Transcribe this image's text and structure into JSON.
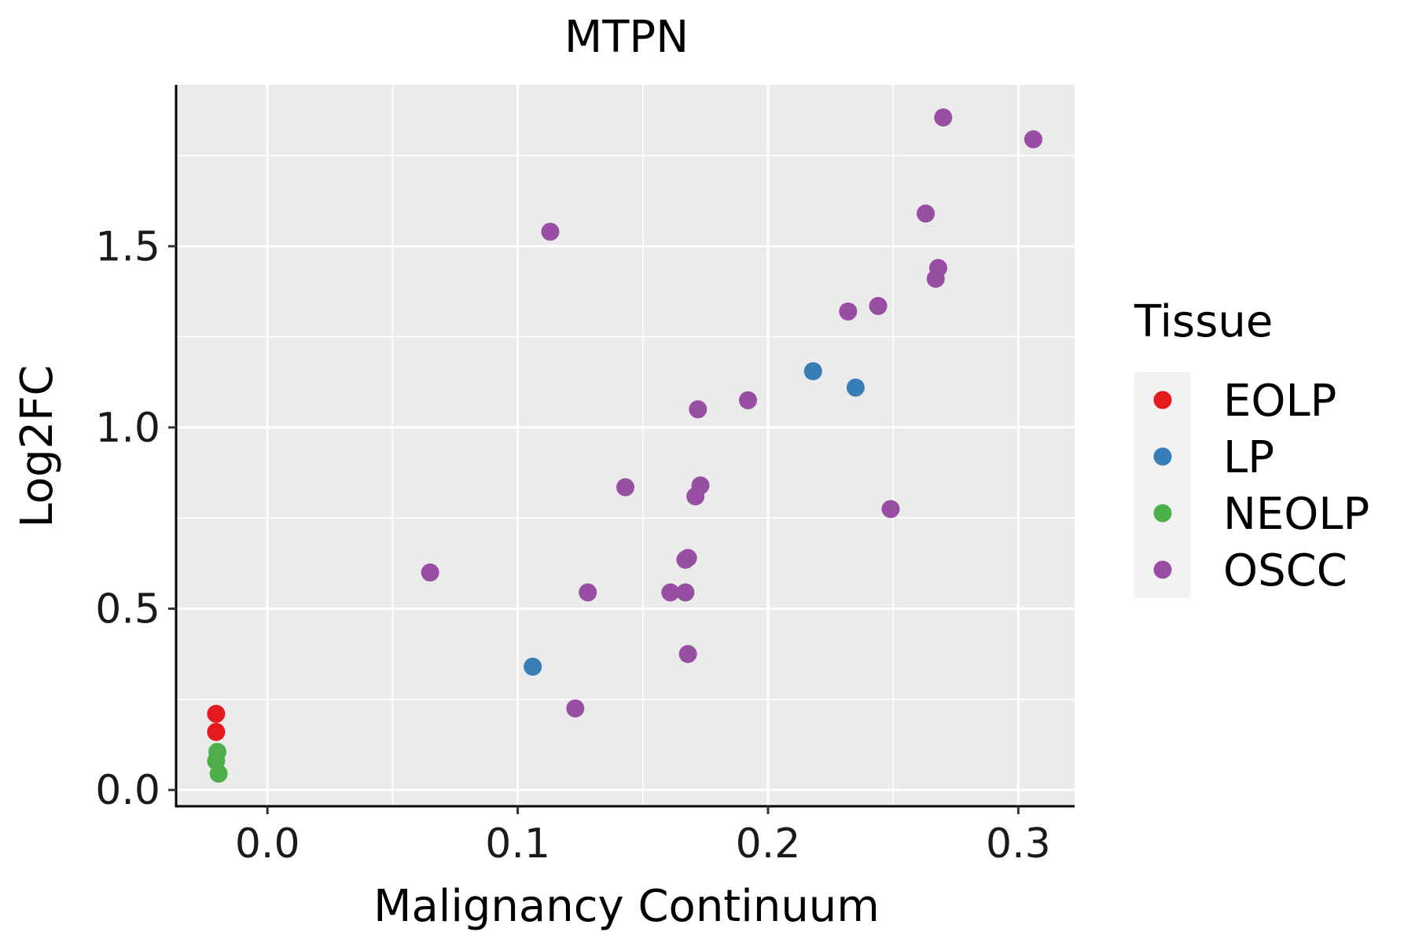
{
  "chart_data": {
    "type": "scatter",
    "title": "MTPN",
    "xlabel": "Malignancy Continuum",
    "ylabel": "Log2FC",
    "xlim": [
      -0.0365,
      0.3225
    ],
    "ylim": [
      -0.045,
      1.945
    ],
    "x_ticks": [
      {
        "value": 0.0,
        "label": "0.0"
      },
      {
        "value": 0.1,
        "label": "0.1"
      },
      {
        "value": 0.2,
        "label": "0.2"
      },
      {
        "value": 0.3,
        "label": "0.3"
      }
    ],
    "y_ticks": [
      {
        "value": 0.0,
        "label": "0.0"
      },
      {
        "value": 0.5,
        "label": "0.5"
      },
      {
        "value": 1.0,
        "label": "1.0"
      },
      {
        "value": 1.5,
        "label": "1.5"
      }
    ],
    "grid": true,
    "legend": {
      "title": "Tissue",
      "position": "right",
      "entries": [
        {
          "name": "EOLP",
          "color": "#E41A1C"
        },
        {
          "name": "LP",
          "color": "#377EB8"
        },
        {
          "name": "NEOLP",
          "color": "#4DAF4A"
        },
        {
          "name": "OSCC",
          "color": "#984EA3"
        }
      ]
    },
    "series": [
      {
        "name": "EOLP",
        "color": "#E41A1C",
        "points": [
          {
            "x": -0.0205,
            "y": 0.21
          },
          {
            "x": -0.0205,
            "y": 0.16
          }
        ]
      },
      {
        "name": "LP",
        "color": "#377EB8",
        "points": [
          {
            "x": 0.106,
            "y": 0.34
          },
          {
            "x": 0.218,
            "y": 1.155
          },
          {
            "x": 0.235,
            "y": 1.11
          }
        ]
      },
      {
        "name": "NEOLP",
        "color": "#4DAF4A",
        "points": [
          {
            "x": -0.02,
            "y": 0.105
          },
          {
            "x": -0.0205,
            "y": 0.08
          },
          {
            "x": -0.0195,
            "y": 0.045
          }
        ]
      },
      {
        "name": "OSCC",
        "color": "#984EA3",
        "points": [
          {
            "x": 0.065,
            "y": 0.6
          },
          {
            "x": 0.113,
            "y": 1.54
          },
          {
            "x": 0.123,
            "y": 0.225
          },
          {
            "x": 0.128,
            "y": 0.545
          },
          {
            "x": 0.143,
            "y": 0.835
          },
          {
            "x": 0.161,
            "y": 0.545
          },
          {
            "x": 0.167,
            "y": 0.545
          },
          {
            "x": 0.167,
            "y": 0.635
          },
          {
            "x": 0.168,
            "y": 0.64
          },
          {
            "x": 0.168,
            "y": 0.375
          },
          {
            "x": 0.171,
            "y": 0.81
          },
          {
            "x": 0.172,
            "y": 1.05
          },
          {
            "x": 0.173,
            "y": 0.84
          },
          {
            "x": 0.192,
            "y": 1.075
          },
          {
            "x": 0.232,
            "y": 1.32
          },
          {
            "x": 0.244,
            "y": 1.335
          },
          {
            "x": 0.249,
            "y": 0.775
          },
          {
            "x": 0.263,
            "y": 1.59
          },
          {
            "x": 0.267,
            "y": 1.41
          },
          {
            "x": 0.268,
            "y": 1.44
          },
          {
            "x": 0.27,
            "y": 1.855
          },
          {
            "x": 0.306,
            "y": 1.795
          }
        ]
      }
    ]
  }
}
